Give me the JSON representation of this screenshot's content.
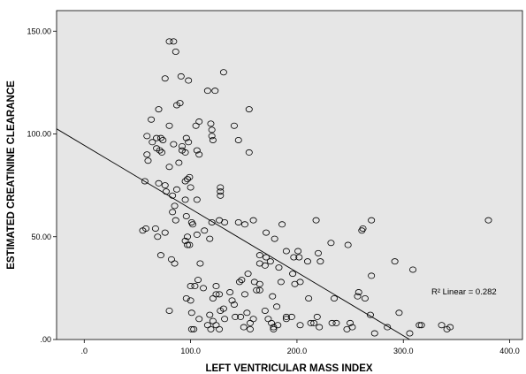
{
  "chart_data": {
    "type": "scatter",
    "title": "",
    "xlabel": "LEFT VENTRICULAR MASS INDEX",
    "ylabel": "ESTIMATED CREATININE CLEARANCE",
    "xlim": [
      -26,
      412
    ],
    "ylim": [
      0,
      160
    ],
    "x_ticks": [
      0,
      100,
      200,
      300,
      400
    ],
    "x_tick_labels": [
      ".0",
      "100.0",
      "200.0",
      "300.0",
      "400.0"
    ],
    "y_ticks": [
      0,
      50,
      100,
      150
    ],
    "y_tick_labels": [
      ".00",
      "50.00",
      "100.00",
      "150.00"
    ],
    "grid": false,
    "plot_background": "#e6e6e6",
    "marker_color": "#000000",
    "fit_line": {
      "label": "R² Linear = 0.282",
      "points": [
        [
          -26,
          102.5
        ],
        [
          306,
          0
        ]
      ]
    },
    "points": [
      [
        80,
        145
      ],
      [
        84,
        145
      ],
      [
        86,
        140
      ],
      [
        131,
        130
      ],
      [
        76,
        127
      ],
      [
        91,
        128
      ],
      [
        98,
        126
      ],
      [
        155,
        112
      ],
      [
        116,
        121
      ],
      [
        123,
        121
      ],
      [
        70,
        112
      ],
      [
        87,
        114
      ],
      [
        90,
        115
      ],
      [
        63,
        107
      ],
      [
        108,
        106
      ],
      [
        119,
        105
      ],
      [
        80,
        104
      ],
      [
        59,
        99
      ],
      [
        68,
        98
      ],
      [
        72,
        98
      ],
      [
        64,
        96
      ],
      [
        74,
        97
      ],
      [
        96,
        98
      ],
      [
        105,
        104
      ],
      [
        120,
        102
      ],
      [
        120,
        99
      ],
      [
        121,
        97
      ],
      [
        98,
        96
      ],
      [
        141,
        104
      ],
      [
        145,
        97
      ],
      [
        84,
        95
      ],
      [
        92,
        92
      ],
      [
        92,
        94
      ],
      [
        95,
        91
      ],
      [
        106,
        92
      ],
      [
        108,
        90
      ],
      [
        59,
        90
      ],
      [
        68,
        93
      ],
      [
        71,
        92
      ],
      [
        73,
        91
      ],
      [
        60,
        87
      ],
      [
        155,
        91
      ],
      [
        89,
        86
      ],
      [
        80,
        84
      ],
      [
        57,
        77
      ],
      [
        76,
        75
      ],
      [
        77,
        72
      ],
      [
        70,
        76
      ],
      [
        87,
        73
      ],
      [
        95,
        77
      ],
      [
        100,
        74
      ],
      [
        97,
        78
      ],
      [
        99,
        79
      ],
      [
        106,
        68
      ],
      [
        83,
        70
      ],
      [
        95,
        68
      ],
      [
        85,
        65
      ],
      [
        83,
        62
      ],
      [
        86,
        58
      ],
      [
        96,
        60
      ],
      [
        101,
        57
      ],
      [
        102,
        56
      ],
      [
        120,
        57
      ],
      [
        127,
        58
      ],
      [
        132,
        57
      ],
      [
        97,
        50
      ],
      [
        106,
        51
      ],
      [
        118,
        49
      ],
      [
        113,
        53
      ],
      [
        95,
        48
      ],
      [
        97,
        46
      ],
      [
        99,
        46
      ],
      [
        67,
        54
      ],
      [
        55,
        53
      ],
      [
        58,
        54
      ],
      [
        76,
        52
      ],
      [
        69,
        50
      ],
      [
        72,
        41
      ],
      [
        82,
        39
      ],
      [
        85,
        37
      ],
      [
        109,
        37
      ],
      [
        128,
        74
      ],
      [
        128,
        72
      ],
      [
        128,
        70
      ],
      [
        145,
        57
      ],
      [
        151,
        56
      ],
      [
        159,
        58
      ],
      [
        171,
        52
      ],
      [
        179,
        49
      ],
      [
        186,
        56
      ],
      [
        201,
        43
      ],
      [
        210,
        38
      ],
      [
        218,
        58
      ],
      [
        220,
        42
      ],
      [
        222,
        38
      ],
      [
        232,
        47
      ],
      [
        248,
        46
      ],
      [
        261,
        53
      ],
      [
        262,
        54
      ],
      [
        270,
        58
      ],
      [
        171,
        40
      ],
      [
        175,
        38
      ],
      [
        190,
        43
      ],
      [
        197,
        40
      ],
      [
        202,
        40
      ],
      [
        165,
        37
      ],
      [
        170,
        36
      ],
      [
        165,
        41
      ],
      [
        160,
        28
      ],
      [
        146,
        28
      ],
      [
        148,
        29
      ],
      [
        183,
        35
      ],
      [
        196,
        32
      ],
      [
        203,
        28
      ],
      [
        107,
        29
      ],
      [
        100,
        26
      ],
      [
        104,
        26
      ],
      [
        124,
        26
      ],
      [
        124,
        22
      ],
      [
        121,
        20
      ],
      [
        127,
        22
      ],
      [
        128,
        14
      ],
      [
        137,
        23
      ],
      [
        139,
        19
      ],
      [
        142,
        11
      ],
      [
        147,
        11
      ],
      [
        153,
        13
      ],
      [
        159,
        10
      ],
      [
        162,
        24
      ],
      [
        165,
        24
      ],
      [
        165,
        27
      ],
      [
        154,
        32
      ],
      [
        151,
        22
      ],
      [
        141,
        17
      ],
      [
        131,
        15
      ],
      [
        96,
        20
      ],
      [
        100,
        19
      ],
      [
        101,
        13
      ],
      [
        118,
        12
      ],
      [
        80,
        14
      ],
      [
        108,
        10
      ],
      [
        116,
        7
      ],
      [
        119,
        5
      ],
      [
        121,
        9
      ],
      [
        124,
        7
      ],
      [
        132,
        10
      ],
      [
        150,
        6
      ],
      [
        156,
        8
      ],
      [
        170,
        14
      ],
      [
        177,
        21
      ],
      [
        181,
        16
      ],
      [
        178,
        6
      ],
      [
        178,
        5
      ],
      [
        182,
        7
      ],
      [
        190,
        10
      ],
      [
        195,
        11
      ],
      [
        203,
        7
      ],
      [
        216,
        8
      ],
      [
        219,
        11
      ],
      [
        221,
        6
      ],
      [
        233,
        8
      ],
      [
        237,
        8
      ],
      [
        250,
        8
      ],
      [
        252,
        6
      ],
      [
        257,
        21
      ],
      [
        258,
        23
      ],
      [
        269,
        12
      ],
      [
        270,
        31
      ],
      [
        273,
        3
      ],
      [
        292,
        38
      ],
      [
        296,
        13
      ],
      [
        306,
        3
      ],
      [
        309,
        34
      ],
      [
        315,
        7
      ],
      [
        317,
        7
      ],
      [
        336,
        7
      ],
      [
        344,
        6
      ],
      [
        341,
        5
      ],
      [
        380,
        58
      ],
      [
        101,
        5
      ],
      [
        103,
        5
      ],
      [
        127,
        5
      ],
      [
        156,
        5
      ],
      [
        173,
        10
      ],
      [
        176,
        8
      ],
      [
        185,
        28
      ],
      [
        190,
        11
      ],
      [
        198,
        27
      ],
      [
        213,
        8
      ],
      [
        247,
        5
      ],
      [
        285,
        6
      ],
      [
        211,
        20
      ],
      [
        235,
        20
      ],
      [
        264,
        20
      ],
      [
        112,
        25
      ]
    ]
  }
}
